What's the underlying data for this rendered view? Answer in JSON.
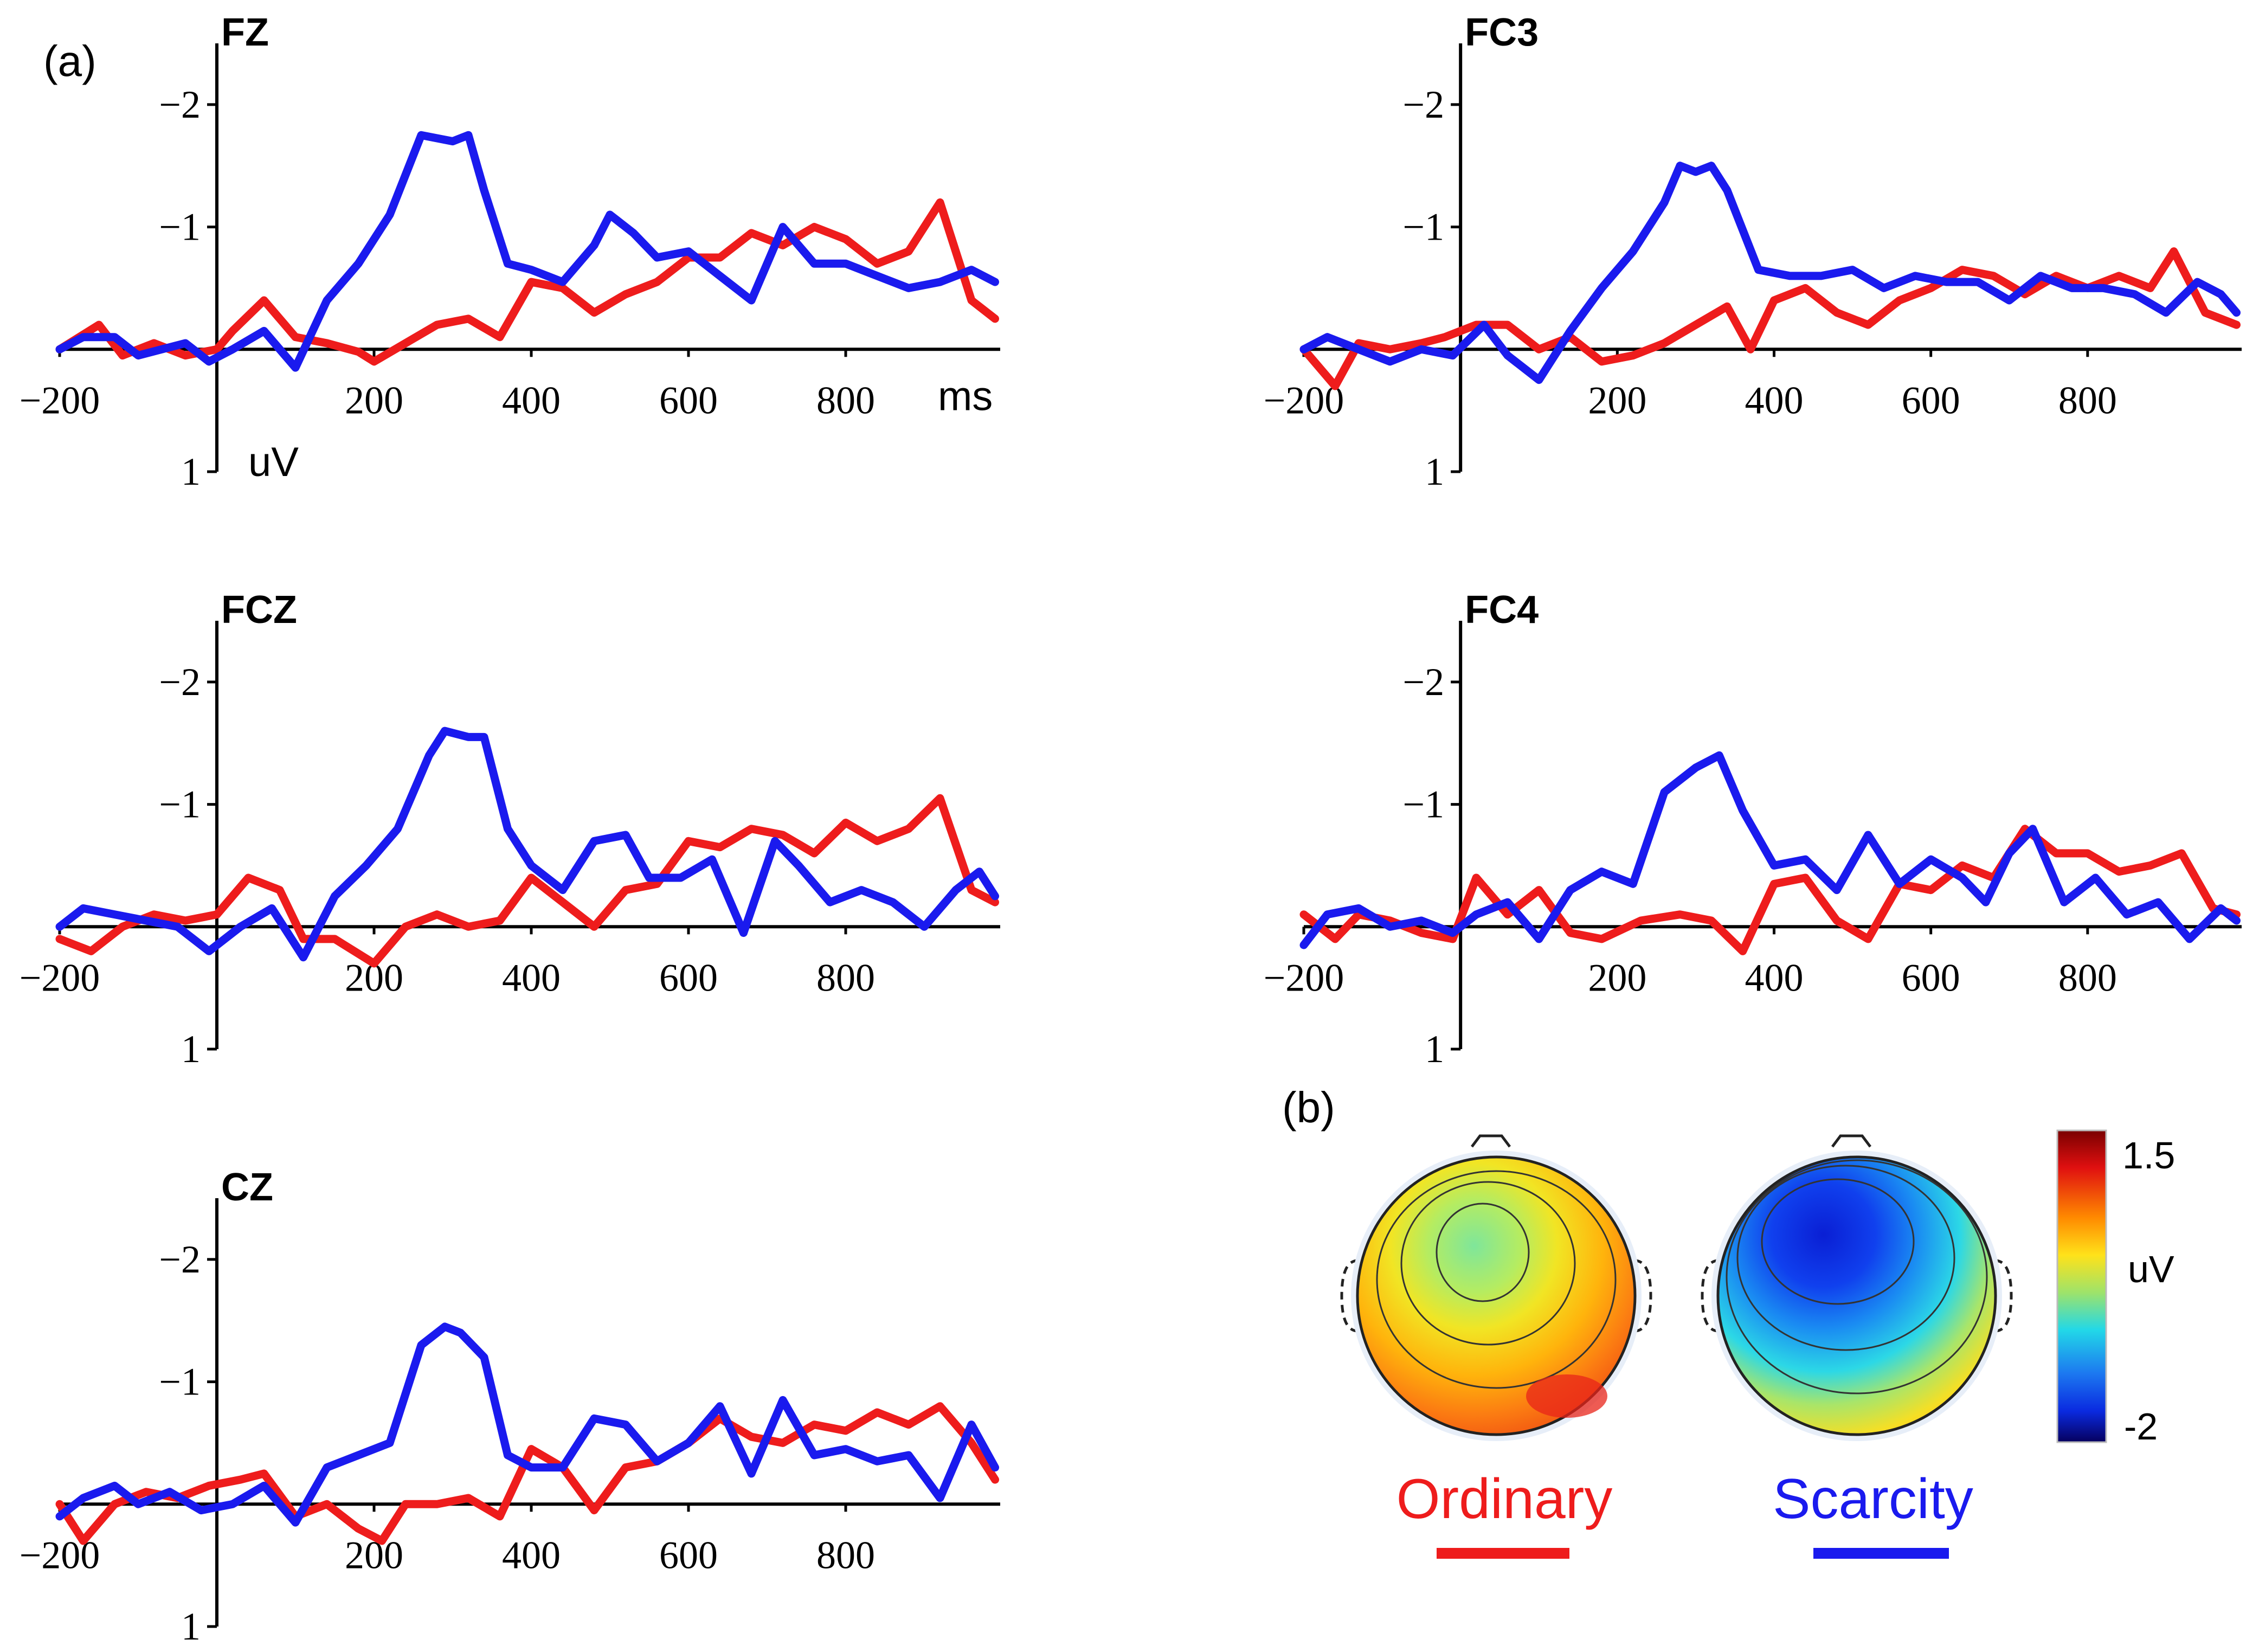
{
  "figure": {
    "panel_a_label": "(a)",
    "panel_b_label": "(b)",
    "colors": {
      "ordinary": "#ee1c1c",
      "scarcity": "#1a1aee",
      "axis": "#000000"
    }
  },
  "chart_data": [
    {
      "type": "line",
      "title": "FZ",
      "xlabel": "ms",
      "ylabel": "uV",
      "xlim": [
        -200,
        1000
      ],
      "ylim": [
        -2.5,
        1
      ],
      "y_inverted": true,
      "x_ticks": [
        "-200",
        "200",
        "400",
        "600",
        "800"
      ],
      "y_ticks": [
        "-2",
        "-1",
        "1"
      ],
      "series": [
        {
          "name": "Ordinary",
          "x": [
            -200,
            -150,
            -120,
            -80,
            -40,
            0,
            20,
            60,
            100,
            140,
            180,
            200,
            240,
            280,
            320,
            360,
            400,
            440,
            480,
            520,
            560,
            600,
            640,
            680,
            720,
            760,
            800,
            840,
            880,
            920,
            960,
            990
          ],
          "values": [
            0.0,
            -0.2,
            0.05,
            -0.05,
            0.05,
            0.0,
            -0.15,
            -0.4,
            -0.1,
            -0.05,
            0.02,
            0.1,
            -0.05,
            -0.2,
            -0.25,
            -0.1,
            -0.55,
            -0.5,
            -0.3,
            -0.45,
            -0.55,
            -0.75,
            -0.75,
            -0.95,
            -0.85,
            -1.0,
            -0.9,
            -0.7,
            -0.8,
            -1.2,
            -0.4,
            -0.25
          ]
        },
        {
          "name": "Scarcity",
          "x": [
            -200,
            -170,
            -130,
            -100,
            -70,
            -40,
            -10,
            20,
            60,
            100,
            140,
            180,
            220,
            260,
            300,
            320,
            340,
            370,
            400,
            440,
            480,
            500,
            530,
            560,
            600,
            640,
            680,
            720,
            760,
            800,
            840,
            880,
            920,
            960,
            990
          ],
          "values": [
            0.0,
            -0.1,
            -0.1,
            0.05,
            0.0,
            -0.05,
            0.1,
            0.0,
            -0.15,
            0.15,
            -0.4,
            -0.7,
            -1.1,
            -1.75,
            -1.7,
            -1.75,
            -1.3,
            -0.7,
            -0.65,
            -0.55,
            -0.85,
            -1.1,
            -0.95,
            -0.75,
            -0.8,
            -0.6,
            -0.4,
            -1.0,
            -0.7,
            -0.7,
            -0.6,
            -0.5,
            -0.55,
            -0.65,
            -0.55
          ]
        }
      ]
    },
    {
      "type": "line",
      "title": "FC3",
      "xlabel": "",
      "ylabel": "",
      "xlim": [
        -200,
        1000
      ],
      "ylim": [
        -2.5,
        1
      ],
      "y_inverted": true,
      "x_ticks": [
        "-200",
        "200",
        "400",
        "600",
        "800"
      ],
      "y_ticks": [
        "-2",
        "-1",
        "1"
      ],
      "series": [
        {
          "name": "Ordinary",
          "x": [
            -200,
            -160,
            -130,
            -90,
            -50,
            -20,
            20,
            60,
            100,
            140,
            180,
            220,
            260,
            300,
            340,
            370,
            400,
            440,
            480,
            520,
            560,
            600,
            640,
            680,
            720,
            760,
            800,
            840,
            880,
            910,
            950,
            990
          ],
          "values": [
            0.0,
            0.3,
            -0.05,
            0.0,
            -0.05,
            -0.1,
            -0.2,
            -0.2,
            0.0,
            -0.1,
            0.1,
            0.05,
            -0.05,
            -0.2,
            -0.35,
            0.0,
            -0.4,
            -0.5,
            -0.3,
            -0.2,
            -0.4,
            -0.5,
            -0.65,
            -0.6,
            -0.45,
            -0.6,
            -0.5,
            -0.6,
            -0.5,
            -0.8,
            -0.3,
            -0.2
          ]
        },
        {
          "name": "Scarcity",
          "x": [
            -200,
            -170,
            -130,
            -90,
            -50,
            -10,
            30,
            60,
            100,
            140,
            180,
            220,
            260,
            280,
            300,
            320,
            340,
            380,
            420,
            460,
            500,
            540,
            580,
            620,
            660,
            700,
            740,
            780,
            820,
            860,
            900,
            940,
            970,
            990
          ],
          "values": [
            0.0,
            -0.1,
            0.0,
            0.1,
            0.0,
            0.05,
            -0.2,
            0.05,
            0.25,
            -0.15,
            -0.5,
            -0.8,
            -1.2,
            -1.5,
            -1.45,
            -1.5,
            -1.3,
            -0.65,
            -0.6,
            -0.6,
            -0.65,
            -0.5,
            -0.6,
            -0.55,
            -0.55,
            -0.4,
            -0.6,
            -0.5,
            -0.5,
            -0.45,
            -0.3,
            -0.55,
            -0.45,
            -0.3
          ]
        }
      ]
    },
    {
      "type": "line",
      "title": "FCZ",
      "xlabel": "",
      "ylabel": "",
      "xlim": [
        -200,
        1000
      ],
      "ylim": [
        -2.5,
        1
      ],
      "y_inverted": true,
      "x_ticks": [
        "-200",
        "200",
        "400",
        "600",
        "800"
      ],
      "y_ticks": [
        "-2",
        "-1",
        "1"
      ],
      "series": [
        {
          "name": "Ordinary",
          "x": [
            -200,
            -160,
            -120,
            -80,
            -40,
            0,
            40,
            80,
            110,
            150,
            200,
            240,
            280,
            320,
            360,
            400,
            440,
            480,
            520,
            560,
            600,
            640,
            680,
            720,
            760,
            800,
            840,
            880,
            920,
            960,
            990
          ],
          "values": [
            0.1,
            0.2,
            0.0,
            -0.1,
            -0.05,
            -0.1,
            -0.4,
            -0.3,
            0.1,
            0.1,
            0.3,
            0.0,
            -0.1,
            0.0,
            -0.05,
            -0.4,
            -0.2,
            0.0,
            -0.3,
            -0.35,
            -0.7,
            -0.65,
            -0.8,
            -0.75,
            -0.6,
            -0.85,
            -0.7,
            -0.8,
            -1.05,
            -0.3,
            -0.2
          ]
        },
        {
          "name": "Scarcity",
          "x": [
            -200,
            -170,
            -130,
            -90,
            -50,
            -10,
            30,
            70,
            110,
            150,
            190,
            230,
            270,
            290,
            320,
            340,
            370,
            400,
            440,
            480,
            520,
            550,
            590,
            630,
            670,
            710,
            740,
            780,
            820,
            860,
            900,
            940,
            970,
            990
          ],
          "values": [
            0.0,
            -0.15,
            -0.1,
            -0.05,
            0.0,
            0.2,
            0.0,
            -0.15,
            0.25,
            -0.25,
            -0.5,
            -0.8,
            -1.4,
            -1.6,
            -1.55,
            -1.55,
            -0.8,
            -0.5,
            -0.3,
            -0.7,
            -0.75,
            -0.4,
            -0.4,
            -0.55,
            0.05,
            -0.7,
            -0.5,
            -0.2,
            -0.3,
            -0.2,
            0.0,
            -0.3,
            -0.45,
            -0.25
          ]
        }
      ]
    },
    {
      "type": "line",
      "title": "FC4",
      "xlabel": "",
      "ylabel": "",
      "xlim": [
        -200,
        1000
      ],
      "ylim": [
        -2.5,
        1
      ],
      "y_inverted": true,
      "x_ticks": [
        "-200",
        "200",
        "400",
        "600",
        "800"
      ],
      "y_ticks": [
        "-2",
        "-1",
        "1"
      ],
      "series": [
        {
          "name": "Ordinary",
          "x": [
            -200,
            -160,
            -130,
            -90,
            -50,
            -10,
            20,
            60,
            100,
            140,
            180,
            230,
            280,
            320,
            360,
            400,
            440,
            480,
            520,
            560,
            600,
            640,
            680,
            720,
            760,
            800,
            840,
            880,
            920,
            960,
            990
          ],
          "values": [
            -0.1,
            0.1,
            -0.1,
            -0.05,
            0.05,
            0.1,
            -0.4,
            -0.1,
            -0.3,
            0.05,
            0.1,
            -0.05,
            -0.1,
            -0.05,
            0.2,
            -0.35,
            -0.4,
            -0.05,
            0.1,
            -0.35,
            -0.3,
            -0.5,
            -0.4,
            -0.8,
            -0.6,
            -0.6,
            -0.45,
            -0.5,
            -0.6,
            -0.15,
            -0.1
          ]
        },
        {
          "name": "Scarcity",
          "x": [
            -200,
            -170,
            -130,
            -90,
            -50,
            -10,
            20,
            60,
            100,
            140,
            180,
            220,
            260,
            300,
            330,
            360,
            400,
            440,
            480,
            520,
            560,
            600,
            640,
            670,
            700,
            730,
            770,
            810,
            850,
            890,
            930,
            970,
            990
          ],
          "values": [
            0.15,
            -0.1,
            -0.15,
            0.0,
            -0.05,
            0.05,
            -0.1,
            -0.2,
            0.1,
            -0.3,
            -0.45,
            -0.35,
            -1.1,
            -1.3,
            -1.4,
            -0.95,
            -0.5,
            -0.55,
            -0.3,
            -0.75,
            -0.35,
            -0.55,
            -0.4,
            -0.2,
            -0.6,
            -0.8,
            -0.2,
            -0.4,
            -0.1,
            -0.2,
            0.1,
            -0.15,
            -0.05
          ]
        }
      ]
    },
    {
      "type": "line",
      "title": "CZ",
      "xlabel": "",
      "ylabel": "",
      "xlim": [
        -200,
        1000
      ],
      "ylim": [
        -2.5,
        1
      ],
      "y_inverted": true,
      "x_ticks": [
        "-200",
        "200",
        "400",
        "600",
        "800"
      ],
      "y_ticks": [
        "-2",
        "-1",
        "1"
      ],
      "series": [
        {
          "name": "Ordinary",
          "x": [
            -200,
            -170,
            -130,
            -90,
            -50,
            -10,
            30,
            60,
            100,
            140,
            180,
            210,
            240,
            280,
            320,
            360,
            400,
            440,
            480,
            520,
            560,
            600,
            640,
            680,
            720,
            760,
            800,
            840,
            880,
            920,
            960,
            990
          ],
          "values": [
            0.0,
            0.3,
            0.0,
            -0.1,
            -0.05,
            -0.15,
            -0.2,
            -0.25,
            0.1,
            0.0,
            0.2,
            0.3,
            0.0,
            0.0,
            -0.05,
            0.1,
            -0.45,
            -0.3,
            0.05,
            -0.3,
            -0.35,
            -0.5,
            -0.7,
            -0.55,
            -0.5,
            -0.65,
            -0.6,
            -0.75,
            -0.65,
            -0.8,
            -0.5,
            -0.2
          ]
        },
        {
          "name": "Scarcity",
          "x": [
            -200,
            -170,
            -130,
            -100,
            -60,
            -20,
            20,
            60,
            100,
            140,
            180,
            220,
            260,
            290,
            310,
            340,
            370,
            400,
            440,
            480,
            520,
            560,
            600,
            640,
            680,
            720,
            760,
            800,
            840,
            880,
            920,
            960,
            990
          ],
          "values": [
            0.1,
            -0.05,
            -0.15,
            0.0,
            -0.1,
            0.05,
            0.0,
            -0.15,
            0.15,
            -0.3,
            -0.4,
            -0.5,
            -1.3,
            -1.45,
            -1.4,
            -1.2,
            -0.4,
            -0.3,
            -0.3,
            -0.7,
            -0.65,
            -0.35,
            -0.5,
            -0.8,
            -0.25,
            -0.85,
            -0.4,
            -0.45,
            -0.35,
            -0.4,
            -0.05,
            -0.65,
            -0.3
          ]
        }
      ]
    }
  ],
  "topomaps": {
    "colorbar": {
      "max_label": "1.5",
      "unit_label": "uV",
      "min_label": "-2",
      "max_value": 1.5,
      "min_value": -2
    },
    "maps": [
      {
        "name": "Ordinary",
        "mean_value": 0.6
      },
      {
        "name": "Scarcity",
        "mean_value": -1.0
      }
    ]
  }
}
